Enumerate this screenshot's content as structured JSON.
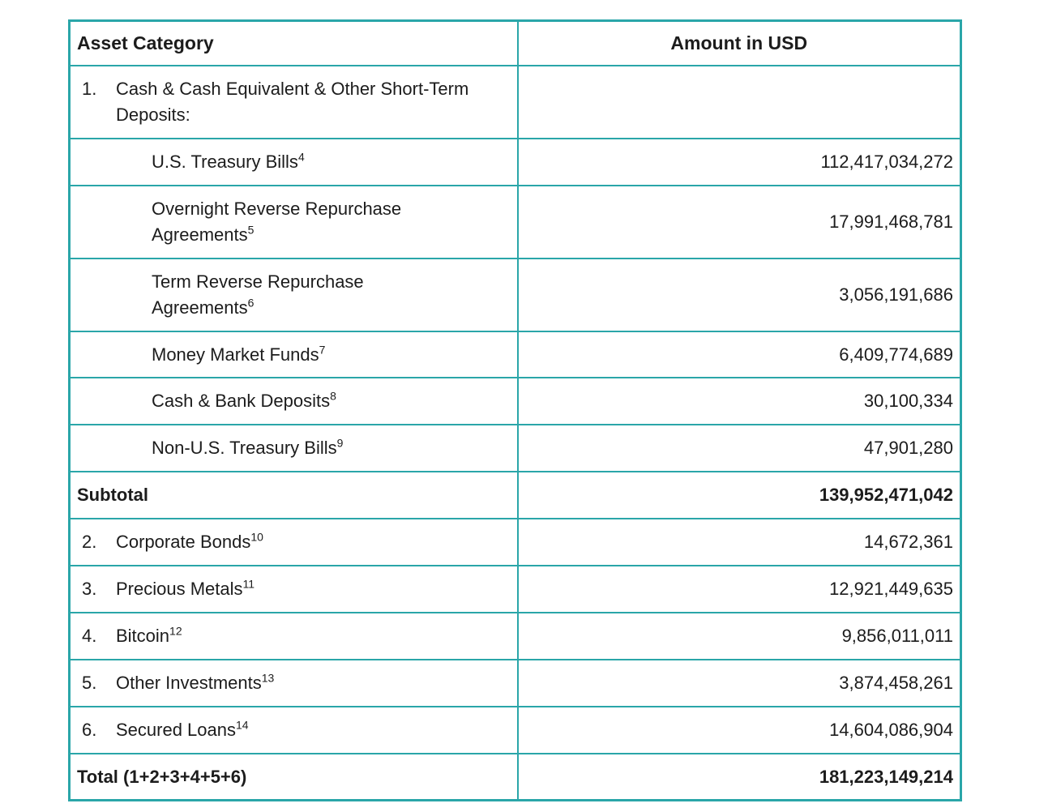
{
  "table": {
    "border_color": "#2aa6a9",
    "text_color": "#1c1c1c",
    "header": {
      "category": "Asset Category",
      "amount": "Amount in USD"
    },
    "rows": [
      {
        "num": "1.",
        "label": "Cash & Cash Equivalent & Other Short-Term Deposits:",
        "sup": "",
        "amount": "",
        "type": "item"
      },
      {
        "num": "",
        "label": "U.S. Treasury Bills",
        "sup": "4",
        "amount": "112,417,034,272",
        "type": "sub"
      },
      {
        "num": "",
        "label": "Overnight Reverse Repurchase Agreements",
        "sup": "5",
        "amount": "17,991,468,781",
        "type": "sub"
      },
      {
        "num": "",
        "label": "Term Reverse Repurchase Agreements",
        "sup": "6",
        "amount": "3,056,191,686",
        "type": "sub"
      },
      {
        "num": "",
        "label": "Money Market Funds",
        "sup": "7",
        "amount": "6,409,774,689",
        "type": "sub"
      },
      {
        "num": "",
        "label": "Cash & Bank Deposits",
        "sup": "8",
        "amount": "30,100,334",
        "type": "sub"
      },
      {
        "num": "",
        "label": "Non-U.S. Treasury Bills",
        "sup": "9",
        "amount": "47,901,280",
        "type": "sub"
      },
      {
        "num": "",
        "label": "Subtotal",
        "sup": "",
        "amount": "139,952,471,042",
        "type": "bold"
      },
      {
        "num": "2.",
        "label": "Corporate Bonds",
        "sup": "10",
        "amount": "14,672,361",
        "type": "item"
      },
      {
        "num": "3.",
        "label": "Precious Metals",
        "sup": "11",
        "amount": "12,921,449,635",
        "type": "item"
      },
      {
        "num": "4.",
        "label": "Bitcoin",
        "sup": "12",
        "amount": "9,856,011,011",
        "type": "item"
      },
      {
        "num": "5.",
        "label": "Other Investments",
        "sup": "13",
        "amount": "3,874,458,261",
        "type": "item"
      },
      {
        "num": "6.",
        "label": "Secured Loans",
        "sup": "14",
        "amount": "14,604,086,904",
        "type": "item"
      },
      {
        "num": "",
        "label": "Total (1+2+3+4+5+6)",
        "sup": "",
        "amount": "181,223,149,214",
        "type": "bold"
      }
    ]
  }
}
